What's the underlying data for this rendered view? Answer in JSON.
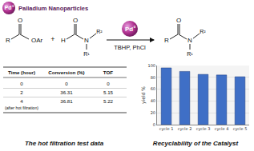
{
  "header": {
    "icon": {
      "text": "Pd",
      "superscript": "0"
    },
    "label": "Palladium Nanoparticles"
  },
  "scheme": {
    "ester": {
      "R": "R",
      "O": "O",
      "OAr": "OAr"
    },
    "plus": "+",
    "formamide": {
      "H": "H",
      "O": "O",
      "N": "N",
      "R2": "R²",
      "R1": "R¹"
    },
    "catalyst": {
      "text": "Pd",
      "superscript": "0"
    },
    "conditions": "TBHP, PhCl",
    "product": {
      "R": "R",
      "O": "O",
      "N": "N",
      "R2": "R²",
      "R1": "R¹"
    }
  },
  "table": {
    "header": [
      "Time (hour)",
      "Conversion (%)",
      "TOF"
    ],
    "rows": [
      [
        0,
        0,
        0
      ],
      [
        2,
        36.31,
        5.15
      ],
      [
        4,
        36.81,
        5.22
      ]
    ],
    "note": "(after hot filtration)",
    "caption": "The hot filtration test data"
  },
  "chart_caption": "Recyclability of the Catalyst",
  "chart_data": {
    "type": "bar",
    "categories": [
      "cycle 1",
      "cycle 2",
      "cycle 3",
      "cycle 4",
      "cycle 5"
    ],
    "values": [
      96,
      90,
      85,
      84,
      81
    ],
    "color": "#3f6fc6",
    "y_label": "yield %",
    "ylim": [
      0,
      100
    ],
    "yticks": [
      0,
      20,
      40,
      60,
      80,
      100
    ],
    "grid": true
  }
}
